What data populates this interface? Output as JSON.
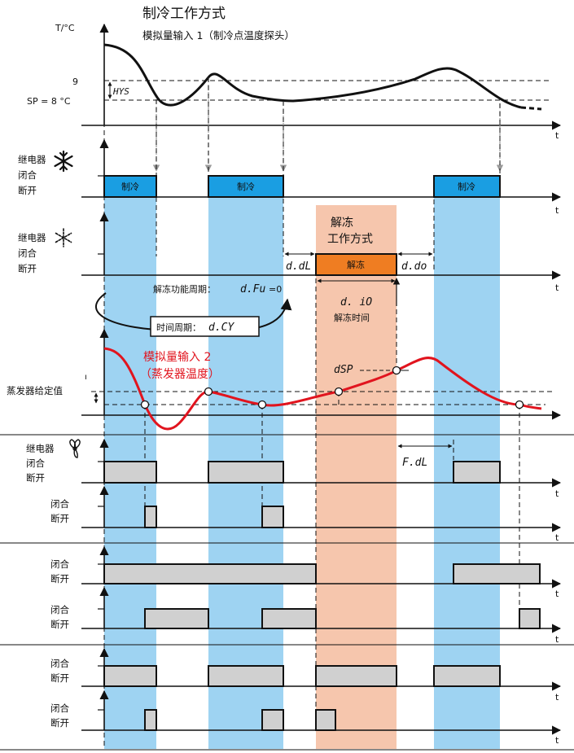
{
  "title": "制冷工作方式",
  "subtitle": "模拟量输入 1（制冷点温度探头）",
  "top_axis": {
    "ylabel": "T/°C",
    "tick_9": "9",
    "tick_sp": "SP = 8 °C",
    "hys": "HYS",
    "t": "t"
  },
  "relay1": {
    "label": "继电器",
    "on": "闭合",
    "off": "断开",
    "pulse_label": "制冷",
    "icon": "snowflake-icon"
  },
  "relay2": {
    "label": "继电器",
    "on": "闭合",
    "off": "断开",
    "pulse_label": "解冻",
    "icon": "defrost-snowflake-icon"
  },
  "defrost": {
    "mode_line1": "解冻",
    "mode_line2": "工作方式",
    "ddl": "d.dL",
    "ddo": "d.do",
    "dio": "d. iO",
    "dio_sub": "解冻时间",
    "dfu_prefix": "解冻功能周期：",
    "dfu_code": "d.Fu",
    "dfu_value": "=0",
    "dcy_prefix": "时间周期：",
    "dcy_code": "d.CY"
  },
  "evap": {
    "label": "蒸发器给定值",
    "input_line1": "模拟量输入 2",
    "input_line2": "（蒸发器温度）",
    "dsp": "dSP",
    "small": "ı"
  },
  "fan": {
    "label": "继电器",
    "icon": "fan-icon",
    "fdl": "F.dL"
  },
  "generic": {
    "on": "闭合",
    "off": "断开",
    "t": "t"
  },
  "colors": {
    "cool_band": "#9ed3f2",
    "defrost_band": "#f6c6ad",
    "cool_pulse": "#1a9ee2",
    "defrost_pulse": "#ef7d22",
    "gray_pulse": "#d0d0d0",
    "red_curve": "#e1141e"
  }
}
